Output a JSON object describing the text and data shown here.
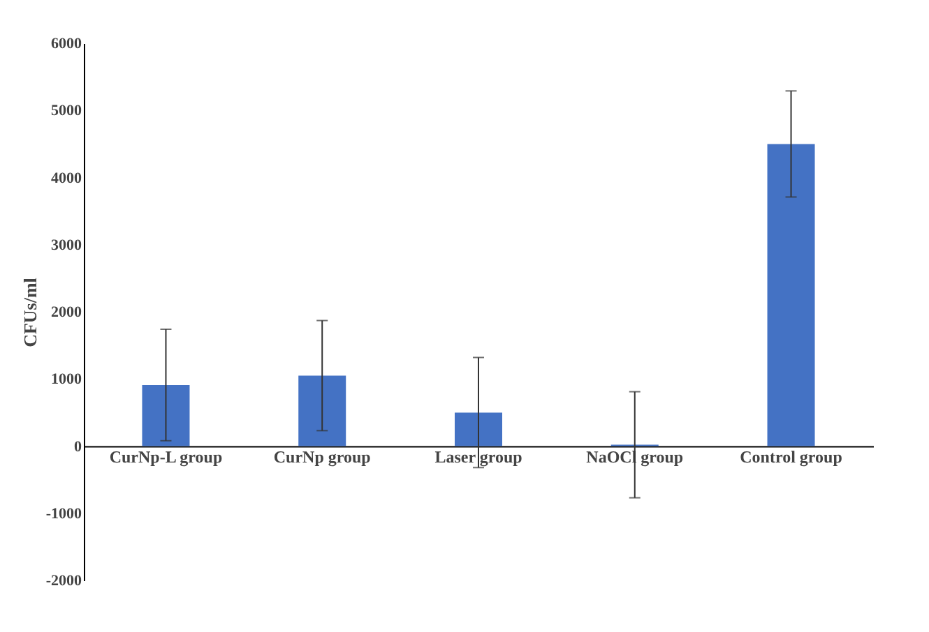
{
  "chart_data": {
    "type": "bar",
    "ylabel": "CFUs/ml",
    "categories": [
      "CurNp-L group",
      "CurNp group",
      "Laser group",
      "NaOCl group",
      "Control group"
    ],
    "values": [
      910,
      1050,
      500,
      20,
      4500
    ],
    "errors": [
      830,
      820,
      820,
      790,
      790
    ],
    "color": "#4472c4",
    "ylim": [
      -2000,
      6000
    ],
    "yticks": [
      -2000,
      -1000,
      0,
      1000,
      2000,
      3000,
      4000,
      5000,
      6000
    ],
    "grid": false
  }
}
